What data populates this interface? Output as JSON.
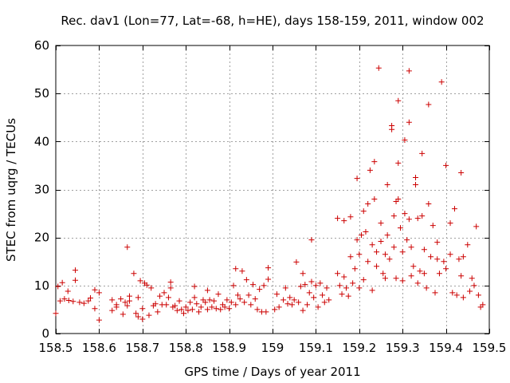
{
  "chart_data": {
    "type": "scatter",
    "title": "Rec. dav1 (Lon=77, Lat=-68, h=HE), days 158-159, 2011, window 002",
    "xlabel": "GPS time / Days of year 2011",
    "ylabel": "STEC from uqrg / TECUs",
    "xlim": [
      158.5,
      159.5
    ],
    "ylim": [
      0,
      60
    ],
    "xticks": [
      158.5,
      158.6,
      158.7,
      158.8,
      158.9,
      159.0,
      159.1,
      159.2,
      159.3,
      159.4,
      159.5
    ],
    "xtick_labels": [
      "158.5",
      "158.6",
      "158.7",
      "158.8",
      "158.9",
      "159",
      "159.1",
      "159.2",
      "159.3",
      "159.4",
      "159.5"
    ],
    "yticks": [
      0,
      10,
      20,
      30,
      40,
      50,
      60
    ],
    "ytick_labels": [
      "0",
      "10",
      "20",
      "30",
      "40",
      "50",
      "60"
    ],
    "grid": true,
    "marker": "+",
    "color": "#cc0000",
    "series": [
      {
        "name": "STEC",
        "points": [
          [
            158.5,
            4.2
          ],
          [
            158.505,
            9.8
          ],
          [
            158.51,
            6.8
          ],
          [
            158.515,
            10.6
          ],
          [
            158.52,
            7.2
          ],
          [
            158.528,
            8.8
          ],
          [
            158.53,
            6.9
          ],
          [
            158.54,
            6.7
          ],
          [
            158.545,
            13.2
          ],
          [
            158.545,
            11.1
          ],
          [
            158.555,
            6.5
          ],
          [
            158.565,
            6.3
          ],
          [
            158.575,
            6.8
          ],
          [
            158.58,
            7.4
          ],
          [
            158.59,
            5.2
          ],
          [
            158.59,
            9.1
          ],
          [
            158.6,
            8.5
          ],
          [
            158.6,
            2.8
          ],
          [
            158.63,
            7.0
          ],
          [
            158.63,
            4.8
          ],
          [
            158.64,
            6.0
          ],
          [
            158.64,
            5.5
          ],
          [
            158.65,
            7.2
          ],
          [
            158.655,
            4.0
          ],
          [
            158.66,
            6.5
          ],
          [
            158.665,
            5.8
          ],
          [
            158.665,
            18.0
          ],
          [
            158.67,
            7.8
          ],
          [
            158.67,
            6.8
          ],
          [
            158.68,
            12.5
          ],
          [
            158.685,
            4.2
          ],
          [
            158.69,
            7.5
          ],
          [
            158.69,
            3.5
          ],
          [
            158.695,
            11.0
          ],
          [
            158.7,
            5.2
          ],
          [
            158.7,
            3.0
          ],
          [
            158.705,
            10.5
          ],
          [
            158.71,
            10.1
          ],
          [
            158.715,
            3.8
          ],
          [
            158.72,
            9.5
          ],
          [
            158.725,
            5.8
          ],
          [
            158.73,
            6.2
          ],
          [
            158.735,
            4.5
          ],
          [
            158.74,
            7.8
          ],
          [
            158.745,
            6.0
          ],
          [
            158.75,
            8.5
          ],
          [
            158.755,
            6.0
          ],
          [
            158.76,
            7.5
          ],
          [
            158.765,
            9.5
          ],
          [
            158.765,
            10.7
          ],
          [
            158.77,
            5.5
          ],
          [
            158.775,
            5.8
          ],
          [
            158.78,
            4.8
          ],
          [
            158.785,
            6.8
          ],
          [
            158.79,
            5.0
          ],
          [
            158.795,
            4.2
          ],
          [
            158.8,
            5.5
          ],
          [
            158.805,
            4.8
          ],
          [
            158.81,
            6.5
          ],
          [
            158.815,
            5.0
          ],
          [
            158.82,
            9.8
          ],
          [
            158.82,
            7.5
          ],
          [
            158.825,
            6.2
          ],
          [
            158.83,
            4.5
          ],
          [
            158.835,
            5.5
          ],
          [
            158.84,
            7.0
          ],
          [
            158.845,
            6.5
          ],
          [
            158.85,
            9.0
          ],
          [
            158.85,
            5.0
          ],
          [
            158.855,
            7.0
          ],
          [
            158.86,
            5.5
          ],
          [
            158.865,
            6.8
          ],
          [
            158.87,
            5.2
          ],
          [
            158.875,
            8.2
          ],
          [
            158.88,
            5.0
          ],
          [
            158.885,
            6.0
          ],
          [
            158.89,
            5.5
          ],
          [
            158.895,
            7.0
          ],
          [
            158.9,
            5.2
          ],
          [
            158.905,
            6.5
          ],
          [
            158.91,
            10.0
          ],
          [
            158.915,
            13.5
          ],
          [
            158.915,
            6.0
          ],
          [
            158.92,
            8.0
          ],
          [
            158.925,
            7.2
          ],
          [
            158.93,
            13.0
          ],
          [
            158.935,
            6.5
          ],
          [
            158.94,
            11.2
          ],
          [
            158.945,
            8.0
          ],
          [
            158.95,
            6.0
          ],
          [
            158.955,
            10.2
          ],
          [
            158.96,
            7.2
          ],
          [
            158.965,
            5.0
          ],
          [
            158.97,
            9.2
          ],
          [
            158.975,
            4.5
          ],
          [
            158.98,
            10.0
          ],
          [
            158.985,
            4.5
          ],
          [
            158.99,
            13.7
          ],
          [
            158.99,
            11.3
          ],
          [
            159.005,
            5.0
          ],
          [
            159.01,
            8.2
          ],
          [
            159.015,
            5.5
          ],
          [
            159.025,
            7.0
          ],
          [
            159.03,
            9.5
          ],
          [
            159.035,
            6.2
          ],
          [
            159.04,
            7.5
          ],
          [
            159.045,
            6.0
          ],
          [
            159.05,
            7.0
          ],
          [
            159.055,
            14.9
          ],
          [
            159.06,
            6.5
          ],
          [
            159.065,
            9.8
          ],
          [
            159.07,
            12.5
          ],
          [
            159.07,
            4.8
          ],
          [
            159.075,
            10.2
          ],
          [
            159.08,
            6.0
          ],
          [
            159.085,
            8.5
          ],
          [
            159.09,
            10.8
          ],
          [
            159.09,
            19.5
          ],
          [
            159.095,
            7.5
          ],
          [
            159.1,
            10.0
          ],
          [
            159.105,
            5.5
          ],
          [
            159.11,
            10.5
          ],
          [
            159.115,
            8.0
          ],
          [
            159.12,
            6.5
          ],
          [
            159.125,
            9.5
          ],
          [
            159.13,
            7.0
          ],
          [
            159.15,
            24.0
          ],
          [
            159.15,
            12.5
          ],
          [
            159.155,
            10.0
          ],
          [
            159.16,
            8.2
          ],
          [
            159.165,
            11.8
          ],
          [
            159.165,
            23.5
          ],
          [
            159.17,
            9.5
          ],
          [
            159.175,
            7.8
          ],
          [
            159.18,
            24.3
          ],
          [
            159.18,
            16.0
          ],
          [
            159.185,
            10.5
          ],
          [
            159.19,
            13.5
          ],
          [
            159.195,
            19.5
          ],
          [
            159.195,
            32.3
          ],
          [
            159.2,
            9.5
          ],
          [
            159.2,
            16.5
          ],
          [
            159.205,
            20.5
          ],
          [
            159.21,
            25.5
          ],
          [
            159.21,
            11.2
          ],
          [
            159.215,
            21.2
          ],
          [
            159.22,
            27.0
          ],
          [
            159.22,
            15.0
          ],
          [
            159.225,
            34.0
          ],
          [
            159.23,
            18.5
          ],
          [
            159.23,
            9.0
          ],
          [
            159.235,
            35.8
          ],
          [
            159.235,
            28.0
          ],
          [
            159.24,
            17.0
          ],
          [
            159.24,
            14.0
          ],
          [
            159.245,
            55.3
          ],
          [
            159.25,
            23.0
          ],
          [
            159.25,
            19.2
          ],
          [
            159.255,
            12.5
          ],
          [
            159.26,
            16.5
          ],
          [
            159.26,
            11.5
          ],
          [
            159.265,
            20.5
          ],
          [
            159.265,
            31.0
          ],
          [
            159.27,
            15.5
          ],
          [
            159.275,
            43.3
          ],
          [
            159.275,
            42.5
          ],
          [
            159.28,
            24.5
          ],
          [
            159.28,
            18.0
          ],
          [
            159.285,
            27.5
          ],
          [
            159.285,
            11.5
          ],
          [
            159.29,
            48.5
          ],
          [
            159.29,
            35.5
          ],
          [
            159.29,
            28.0
          ],
          [
            159.295,
            22.0
          ],
          [
            159.3,
            17.0
          ],
          [
            159.3,
            11.0
          ],
          [
            159.305,
            40.3
          ],
          [
            159.305,
            25.0
          ],
          [
            159.31,
            19.5
          ],
          [
            159.315,
            54.7
          ],
          [
            159.315,
            44.0
          ],
          [
            159.315,
            23.8
          ],
          [
            159.32,
            18.0
          ],
          [
            159.32,
            12.0
          ],
          [
            159.325,
            14.0
          ],
          [
            159.33,
            32.5
          ],
          [
            159.33,
            31.0
          ],
          [
            159.335,
            24.0
          ],
          [
            159.335,
            10.5
          ],
          [
            159.34,
            13.0
          ],
          [
            159.345,
            24.5
          ],
          [
            159.345,
            37.5
          ],
          [
            159.35,
            17.5
          ],
          [
            159.35,
            12.5
          ],
          [
            159.355,
            9.5
          ],
          [
            159.36,
            47.7
          ],
          [
            159.36,
            27.0
          ],
          [
            159.365,
            16.0
          ],
          [
            159.37,
            22.5
          ],
          [
            159.375,
            8.5
          ],
          [
            159.38,
            19.0
          ],
          [
            159.38,
            15.5
          ],
          [
            159.385,
            12.5
          ],
          [
            159.39,
            52.4
          ],
          [
            159.395,
            15.0
          ],
          [
            159.4,
            35.0
          ],
          [
            159.4,
            13.5
          ],
          [
            159.41,
            23.0
          ],
          [
            159.41,
            16.5
          ],
          [
            159.415,
            8.5
          ],
          [
            159.42,
            26.0
          ],
          [
            159.425,
            8.0
          ],
          [
            159.43,
            15.5
          ],
          [
            159.435,
            33.5
          ],
          [
            159.435,
            12.0
          ],
          [
            159.44,
            16.0
          ],
          [
            159.44,
            7.5
          ],
          [
            159.45,
            18.5
          ],
          [
            159.455,
            8.8
          ],
          [
            159.46,
            11.5
          ],
          [
            159.465,
            10.0
          ],
          [
            159.47,
            22.3
          ],
          [
            159.475,
            8.0
          ],
          [
            159.48,
            5.5
          ],
          [
            159.485,
            6.0
          ]
        ]
      }
    ]
  }
}
